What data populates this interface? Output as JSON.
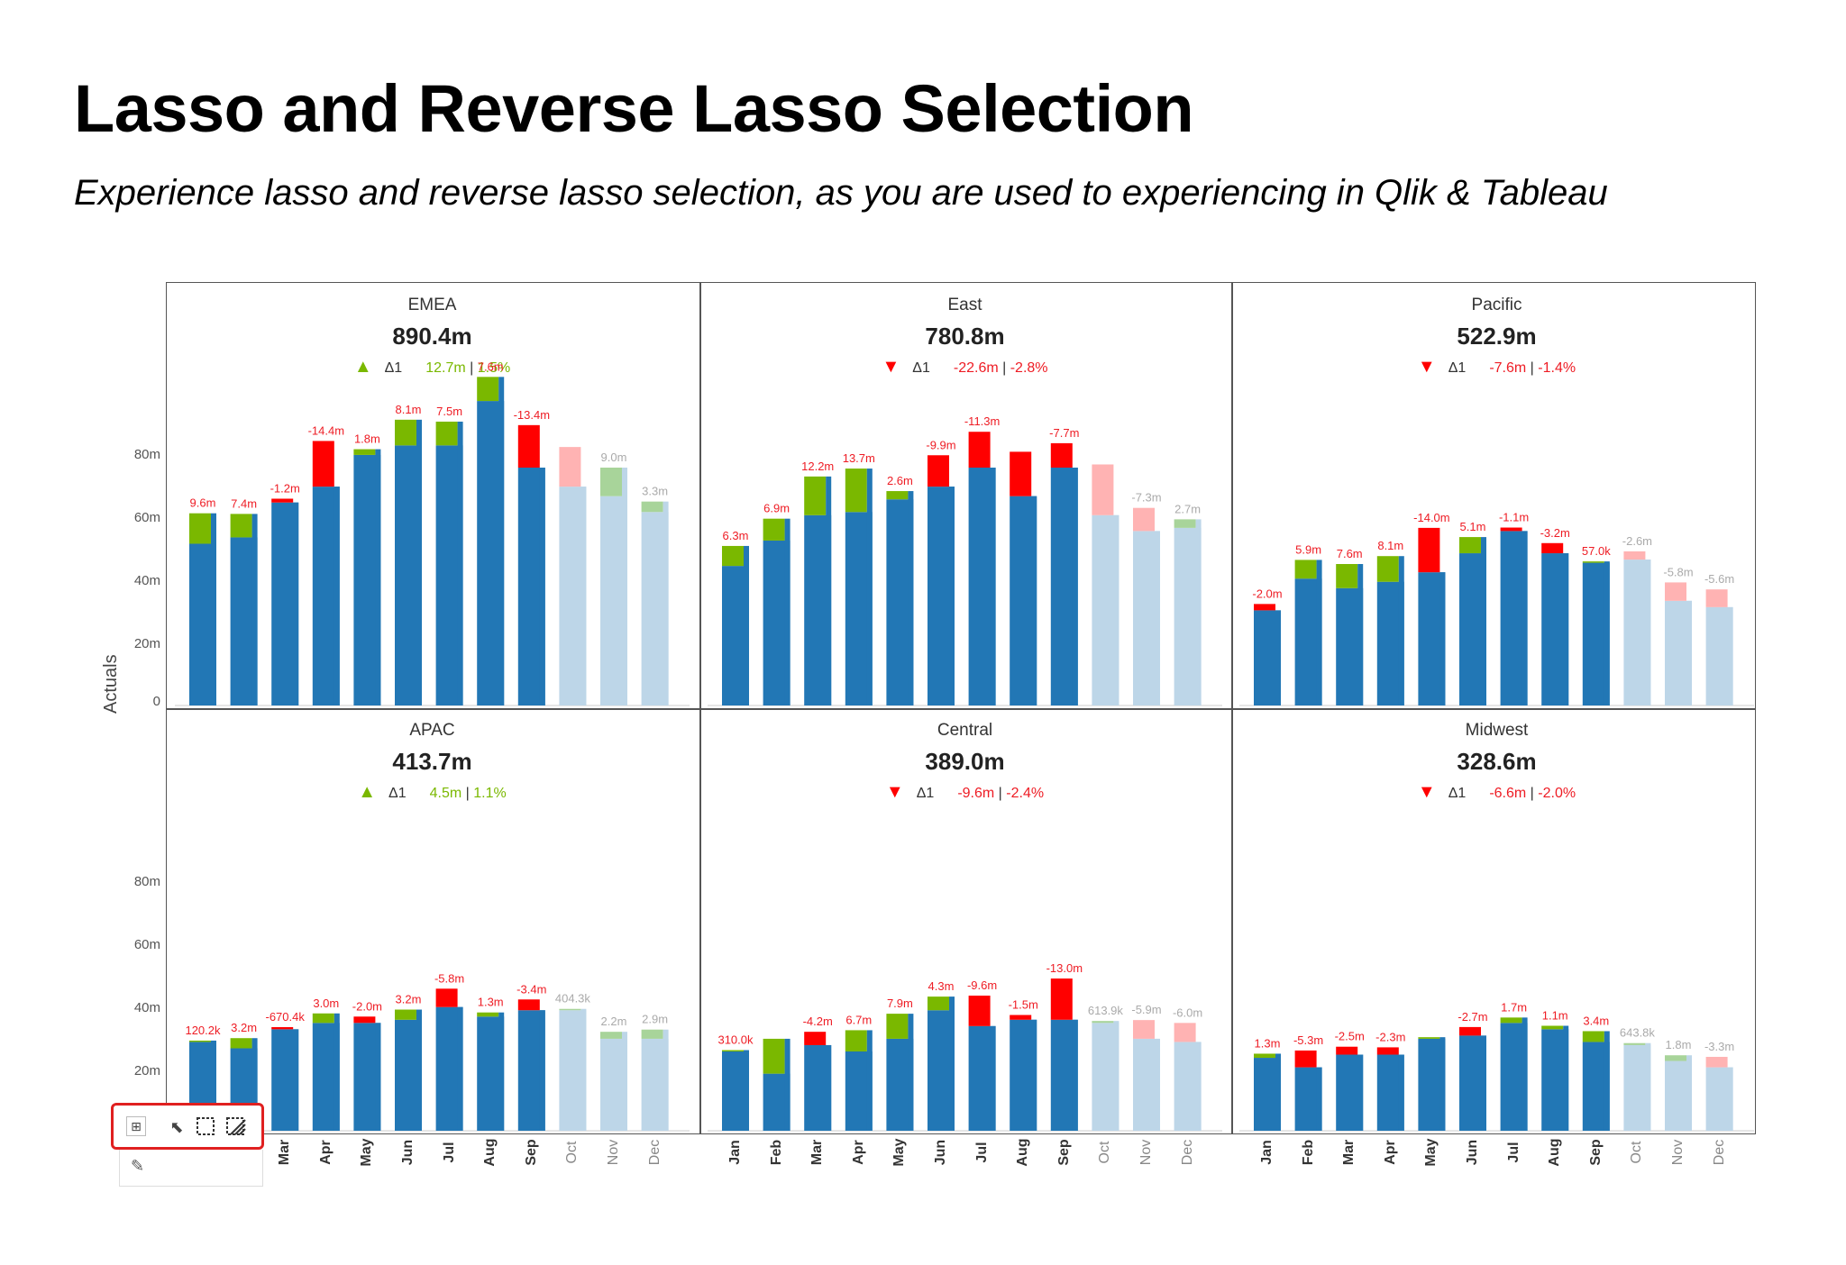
{
  "title": "Lasso and Reverse Lasso Selection",
  "subtitle": "Experience lasso and reverse lasso selection, as you are used to experiencing in Qlik & Tableau",
  "y_axis_label": "Actuals",
  "y_ticks": [
    "0",
    "20m",
    "40m",
    "60m",
    "80m"
  ],
  "months": [
    "Jan",
    "Feb",
    "Mar",
    "Apr",
    "May",
    "Jun",
    "Jul",
    "Aug",
    "Sep",
    "Oct",
    "Nov",
    "Dec"
  ],
  "colors": {
    "actual": "#2277b5",
    "forecast": "#bdd6e8",
    "pos": "#7ab800",
    "neg": "#ff0000",
    "pos_light": "#a8d49a",
    "neg_light": "#ffb3b3",
    "pos_text": "#7ab800",
    "neg_text": "#ee1c24"
  },
  "toolbar": {
    "icons": [
      "grid-icon",
      "pointer-icon",
      "lasso-icon",
      "reverse-lasso-icon",
      "pencil-icon"
    ]
  },
  "chart_data": [
    {
      "type": "bar",
      "region": "EMEA",
      "total": "890.4m",
      "delta": {
        "direction": "up",
        "label": "Δ1",
        "abs": "12.7m",
        "pct": "1.5%"
      },
      "ylim": [
        0,
        95
      ],
      "actual_months": 9,
      "base": [
        51,
        53,
        64,
        69,
        79,
        82,
        82,
        96,
        75,
        69,
        66,
        61
      ],
      "var": [
        9.6,
        7.4,
        -1.2,
        -14.4,
        1.8,
        8.1,
        7.5,
        7.6,
        -13.4,
        -12.5,
        9.0,
        3.3
      ],
      "labels": [
        "9.6m",
        "7.4m",
        "-1.2m",
        "-14.4m",
        "1.8m",
        "8.1m",
        "7.5m",
        "7.6m",
        "-13.4m",
        "",
        "9.0m",
        "3.3m"
      ]
    },
    {
      "type": "bar",
      "region": "East",
      "total": "780.8m",
      "delta": {
        "direction": "down",
        "label": "Δ1",
        "abs": "-22.6m",
        "pct": "-2.8%"
      },
      "ylim": [
        0,
        95
      ],
      "actual_months": 9,
      "base": [
        44,
        52,
        60,
        61,
        65,
        69,
        75,
        66,
        75,
        60,
        55,
        56
      ],
      "var": [
        6.3,
        6.9,
        12.2,
        13.7,
        2.6,
        -9.9,
        -11.3,
        -14.0,
        -7.7,
        -16.0,
        -7.3,
        2.7
      ],
      "labels": [
        "6.3m",
        "6.9m",
        "12.2m",
        "13.7m",
        "2.6m",
        "-9.9m",
        "-11.3m",
        "",
        "-7.7m",
        "",
        "-7.3m",
        "2.7m"
      ]
    },
    {
      "type": "bar",
      "region": "Pacific",
      "total": "522.9m",
      "delta": {
        "direction": "down",
        "label": "Δ1",
        "abs": "-7.6m",
        "pct": "-1.4%"
      },
      "ylim": [
        0,
        95
      ],
      "actual_months": 9,
      "base": [
        30,
        40,
        37,
        39,
        42,
        48,
        55,
        48,
        45,
        46,
        33,
        31
      ],
      "var": [
        -2.0,
        5.9,
        7.6,
        8.1,
        -14.0,
        5.1,
        -1.1,
        -3.2,
        0.057,
        -2.6,
        -5.8,
        -5.6
      ],
      "labels": [
        "-2.0m",
        "5.9m",
        "7.6m",
        "8.1m",
        "-14.0m",
        "5.1m",
        "-1.1m",
        "-3.2m",
        "57.0k",
        "-2.6m",
        "-5.8m",
        "-5.6m"
      ]
    },
    {
      "type": "bar",
      "region": "APAC",
      "total": "413.7m",
      "delta": {
        "direction": "up",
        "label": "Δ1",
        "abs": "4.5m",
        "pct": "1.1%"
      },
      "ylim": [
        0,
        95
      ],
      "actual_months": 9,
      "base": [
        28,
        26,
        32,
        34,
        34,
        35,
        39,
        36,
        38,
        38,
        29,
        29
      ],
      "var": [
        0.12,
        3.2,
        -0.67,
        3.0,
        -2.0,
        3.2,
        -5.8,
        1.3,
        -3.4,
        0.4,
        2.2,
        2.9
      ],
      "labels": [
        "120.2k",
        "3.2m",
        "-670.4k",
        "3.0m",
        "-2.0m",
        "3.2m",
        "-5.8m",
        "1.3m",
        "-3.4m",
        "404.3k",
        "2.2m",
        "2.9m"
      ]
    },
    {
      "type": "bar",
      "region": "Central",
      "total": "389.0m",
      "delta": {
        "direction": "down",
        "label": "Δ1",
        "abs": "-9.6m",
        "pct": "-2.4%"
      },
      "ylim": [
        0,
        95
      ],
      "actual_months": 9,
      "base": [
        25,
        18,
        27,
        25,
        29,
        38,
        33,
        35,
        35,
        34,
        29,
        28
      ],
      "var": [
        0.31,
        11.0,
        -4.2,
        6.7,
        7.9,
        4.3,
        -9.6,
        -1.5,
        -13.0,
        0.61,
        -5.9,
        -6.0
      ],
      "labels": [
        "310.0k",
        "",
        "-4.2m",
        "6.7m",
        "7.9m",
        "4.3m",
        "-9.6m",
        "-1.5m",
        "-13.0m",
        "613.9k",
        "-5.9m",
        "-6.0m"
      ]
    },
    {
      "type": "bar",
      "region": "Midwest",
      "total": "328.6m",
      "delta": {
        "direction": "down",
        "label": "Δ1",
        "abs": "-6.6m",
        "pct": "-2.0%"
      },
      "ylim": [
        0,
        95
      ],
      "actual_months": 9,
      "base": [
        23,
        20,
        24,
        24,
        29,
        30,
        34,
        32,
        28,
        27,
        22,
        20
      ],
      "var": [
        1.3,
        -5.3,
        -2.5,
        -2.3,
        0.5,
        -2.7,
        1.7,
        1.1,
        3.4,
        0.64,
        1.8,
        -3.3
      ],
      "labels": [
        "1.3m",
        "-5.3m",
        "-2.5m",
        "-2.3m",
        "",
        "-2.7m",
        "1.7m",
        "1.1m",
        "3.4m",
        "643.8k",
        "1.8m",
        "-3.3m"
      ]
    }
  ]
}
